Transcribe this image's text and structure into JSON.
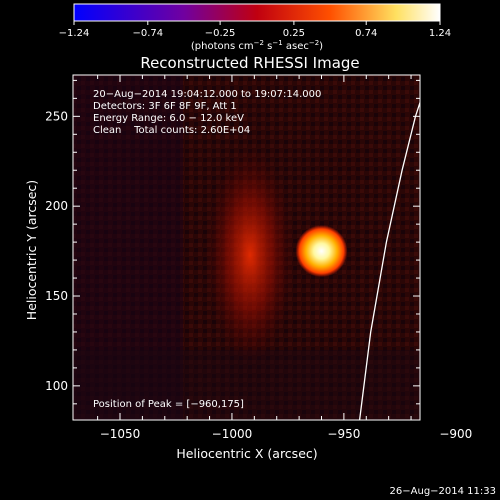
{
  "chart_data": {
    "type": "heatmap",
    "title": "Reconstructed RHESSI Image",
    "xlabel": "Heliocentric X (arcsec)",
    "ylabel": "Heliocentric Y (arcsec)",
    "xlim": [
      -1071,
      -916
    ],
    "ylim": [
      81,
      273
    ],
    "x_ticks": [
      -1050,
      -1000,
      -950,
      -900
    ],
    "x_tick_labels": [
      "−1050",
      "−1000",
      "−950",
      "−900"
    ],
    "y_ticks": [
      100,
      150,
      200,
      250
    ],
    "y_tick_labels": [
      "100",
      "150",
      "200",
      "250"
    ],
    "colorbar": {
      "range": [
        -1.24,
        1.24
      ],
      "ticks": [
        -1.24,
        -0.74,
        -0.25,
        0.25,
        0.74,
        1.24
      ],
      "tick_labels": [
        "−1.24",
        "−0.74",
        "−0.25",
        "0.25",
        "0.74",
        "1.24"
      ],
      "unit_main": "(photons cm",
      "unit_exp1": "−2",
      "unit_mid": " s",
      "unit_exp2": "−1",
      "unit_end": " asec",
      "unit_exp3": "−2",
      "unit_close": ")",
      "colors": [
        "#0000ff",
        "#8000a0",
        "#b00020",
        "#ff4000",
        "#ffff80",
        "#ffffff"
      ]
    },
    "peak": {
      "x": -960,
      "y": 175,
      "value": 1.24
    },
    "limb_curve": {
      "x": [
        -943,
        -938,
        -931,
        -924,
        -918,
        -912
      ],
      "y": [
        81,
        130,
        180,
        220,
        250,
        273
      ]
    },
    "annotations": {
      "time_range": "20−Aug−2014 19:04:12.000 to 19:07:14.000",
      "detectors": "Detectors: 3F 6F 8F 9F, Att 1",
      "energy": "Energy Range: 6.0 − 12.0 keV",
      "clean": "Clean    Total counts: 2.60E+04",
      "peak_position": "Position of Peak = [−960,175]"
    },
    "grid": false
  },
  "footer_timestamp": "26−Aug−2014 11:33"
}
